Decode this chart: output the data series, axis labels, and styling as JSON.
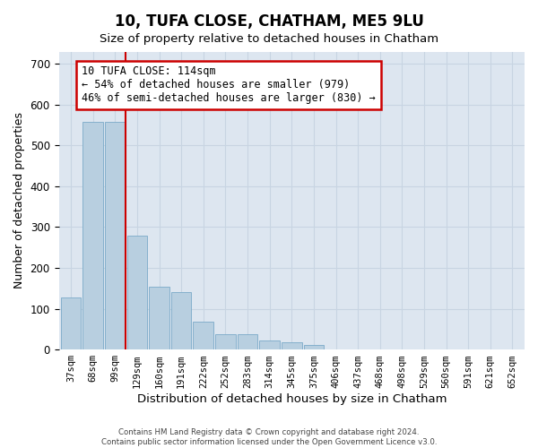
{
  "title": "10, TUFA CLOSE, CHATHAM, ME5 9LU",
  "subtitle": "Size of property relative to detached houses in Chatham",
  "xlabel": "Distribution of detached houses by size in Chatham",
  "ylabel": "Number of detached properties",
  "categories": [
    "37sqm",
    "68sqm",
    "99sqm",
    "129sqm",
    "160sqm",
    "191sqm",
    "222sqm",
    "252sqm",
    "283sqm",
    "314sqm",
    "345sqm",
    "375sqm",
    "406sqm",
    "437sqm",
    "468sqm",
    "498sqm",
    "529sqm",
    "560sqm",
    "591sqm",
    "621sqm",
    "652sqm"
  ],
  "values": [
    128,
    558,
    558,
    280,
    155,
    140,
    68,
    38,
    38,
    22,
    18,
    12,
    0,
    0,
    0,
    0,
    0,
    0,
    0,
    0,
    0
  ],
  "bar_color": "#b8cfe0",
  "bar_edge_color": "#7aaac8",
  "vline_x": 2.48,
  "vline_color": "#cc0000",
  "annotation_text": "10 TUFA CLOSE: 114sqm\n← 54% of detached houses are smaller (979)\n46% of semi-detached houses are larger (830) →",
  "annotation_facecolor": "#ffffff",
  "annotation_edgecolor": "#cc0000",
  "ylim": [
    0,
    730
  ],
  "yticks": [
    0,
    100,
    200,
    300,
    400,
    500,
    600,
    700
  ],
  "grid_color": "#c8d4e2",
  "bg_color": "#dde6f0",
  "footer": "Contains HM Land Registry data © Crown copyright and database right 2024.\nContains public sector information licensed under the Open Government Licence v3.0."
}
